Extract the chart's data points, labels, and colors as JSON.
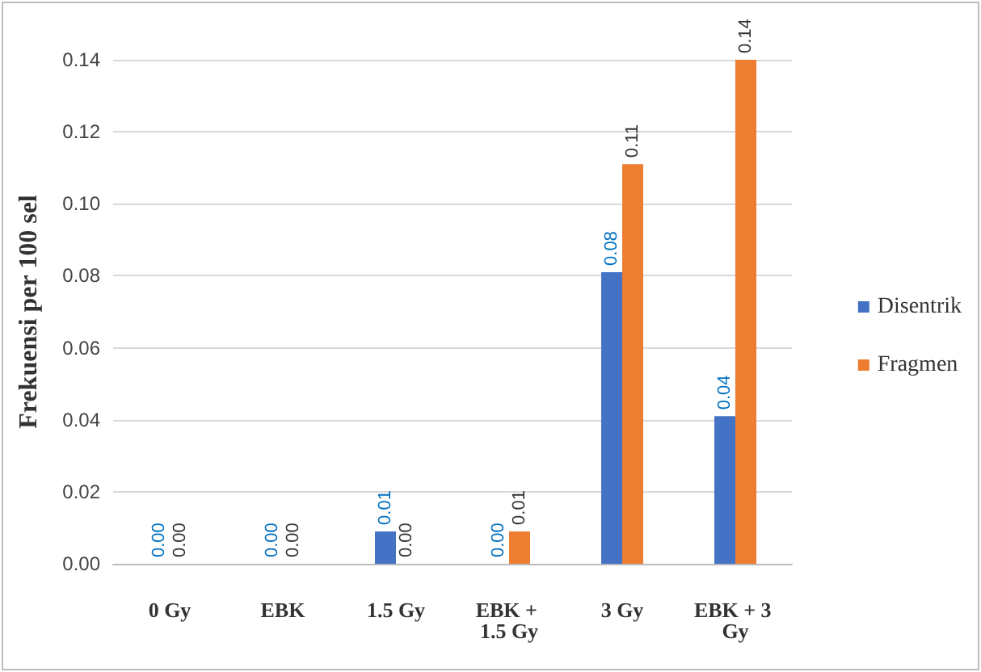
{
  "chart_data": {
    "type": "bar",
    "ylabel": "Frekuensi per 100 sel",
    "categories": [
      "0 Gy",
      "EBK",
      "1.5 Gy",
      "EBK + 1.5 Gy",
      "3 Gy",
      "EBK + 3 Gy"
    ],
    "series": [
      {
        "name": "Disentrik",
        "color": "#4472c4",
        "values": [
          0,
          0,
          0.009,
          0,
          0.081,
          0.041
        ],
        "value_labels": [
          "0.00",
          "0.00",
          "0.01",
          "0.00",
          "0.08",
          "0.04"
        ]
      },
      {
        "name": "Fragmen",
        "color": "#ed7d31",
        "values": [
          0,
          0,
          0,
          0.009,
          0.111,
          0.14
        ],
        "value_labels": [
          "0.00",
          "0.00",
          "0.00",
          "0.01",
          "0.11",
          "0.14"
        ]
      }
    ],
    "ylim": [
      0,
      0.14
    ],
    "yticks": [
      {
        "value": 0,
        "label": "0.00"
      },
      {
        "value": 0.02,
        "label": "0.02"
      },
      {
        "value": 0.04,
        "label": "0.04"
      },
      {
        "value": 0.06,
        "label": "0.06"
      },
      {
        "value": 0.08,
        "label": "0.08"
      },
      {
        "value": 0.1,
        "label": "0.10"
      },
      {
        "value": 0.12,
        "label": "0.12"
      },
      {
        "value": 0.14,
        "label": "0.14"
      }
    ],
    "grid": "y",
    "legend": "right"
  }
}
